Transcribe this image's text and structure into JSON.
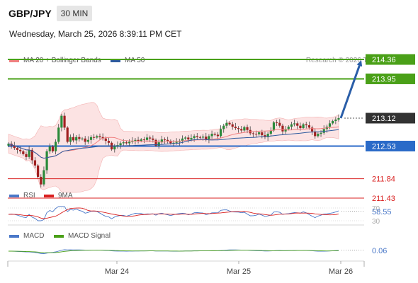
{
  "header": {
    "symbol": "GBP/JPY",
    "timeframe": "30 MIN",
    "datetime": "Wednesday, March 25, 2026 8:39:11 PM CET",
    "credit": "Research © 2026 Trading Central"
  },
  "legends": {
    "main": [
      {
        "label": "MA 20 + Bollinger Bands",
        "color": "#f08080"
      },
      {
        "label": "MA 50",
        "color": "#2d5a9e"
      }
    ],
    "rsi": [
      {
        "label": "RSI",
        "color": "#4a78c8"
      },
      {
        "label": "9MA",
        "color": "#d92020"
      }
    ],
    "macd": [
      {
        "label": "MACD",
        "color": "#4a78c8"
      },
      {
        "label": "MACD Signal",
        "color": "#4aa018"
      }
    ]
  },
  "chart_data": {
    "type": "candlestick",
    "x_ticks": [
      "Mar 24",
      "Mar 25",
      "Mar 26"
    ],
    "price_levels": [
      {
        "value": 214.36,
        "label": "214.36",
        "kind": "resistance",
        "color": "#4aa018"
      },
      {
        "value": 213.95,
        "label": "213.95",
        "kind": "resistance",
        "color": "#4aa018"
      },
      {
        "value": 213.12,
        "label": "213.12",
        "kind": "last",
        "color": "#333333"
      },
      {
        "value": 212.53,
        "label": "212.53",
        "kind": "pivot",
        "color": "#2a6ac8"
      },
      {
        "value": 211.84,
        "label": "211.84",
        "kind": "support",
        "color": "#d92020"
      },
      {
        "value": 211.43,
        "label": "211.43",
        "kind": "support",
        "color": "#d92020"
      }
    ],
    "candle_closes": [
      212.58,
      212.54,
      212.49,
      212.45,
      212.42,
      212.36,
      212.3,
      212.45,
      212.23,
      212.12,
      211.88,
      211.72,
      212.02,
      212.42,
      212.52,
      212.42,
      212.62,
      212.92,
      213.17,
      212.92,
      212.62,
      212.72,
      212.65,
      212.72,
      212.68,
      212.69,
      212.62,
      212.66,
      212.72,
      212.71,
      212.74,
      212.72,
      212.69,
      212.64,
      212.6,
      212.46,
      212.52,
      212.55,
      212.59,
      212.61,
      212.59,
      212.62,
      212.64,
      212.66,
      212.64,
      212.67,
      212.66,
      212.71,
      212.69,
      212.66,
      212.54,
      212.61,
      212.67,
      212.66,
      212.64,
      212.59,
      212.6,
      212.62,
      212.64,
      212.69,
      212.71,
      212.67,
      212.7,
      212.74,
      212.72,
      212.71,
      212.73,
      212.67,
      212.74,
      212.79,
      212.77,
      212.74,
      212.89,
      212.96,
      213.02,
      212.99,
      212.94,
      212.91,
      212.89,
      212.86,
      212.93,
      212.87,
      212.8,
      212.79,
      212.78,
      212.82,
      212.76,
      212.72,
      212.79,
      212.86,
      213.03,
      213.02,
      212.96,
      212.84,
      212.89,
      212.94,
      212.99,
      213.01,
      212.96,
      212.91,
      212.99,
      212.97,
      212.92,
      212.84,
      212.74,
      212.79,
      212.81,
      212.89,
      212.94,
      213.01,
      213.06,
      213.09,
      213.12
    ],
    "projection": {
      "from": 213.12,
      "to": 214.36
    },
    "indicators": {
      "rsi": {
        "levels": [
          70,
          30
        ],
        "value": "58.55"
      },
      "macd": {
        "value": "0.06"
      }
    }
  }
}
